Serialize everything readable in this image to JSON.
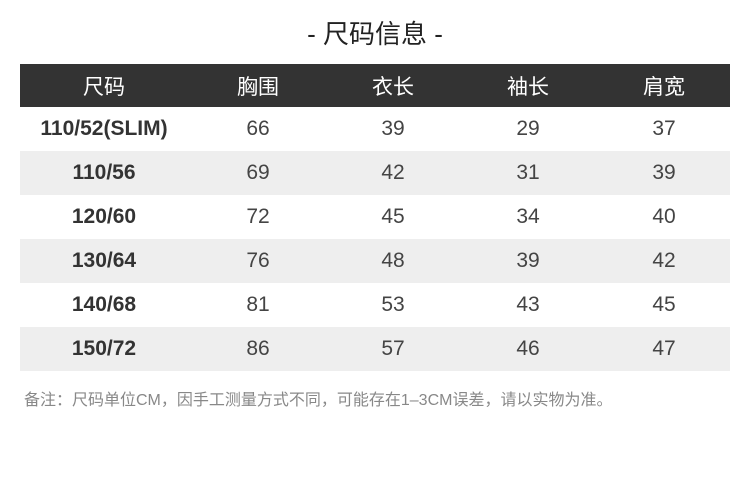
{
  "title": "- 尺码信息 -",
  "table": {
    "headers": [
      "尺码",
      "胸围",
      "衣长",
      "袖长",
      "肩宽"
    ],
    "rows": [
      [
        "110/52(SLIM)",
        "66",
        "39",
        "29",
        "37"
      ],
      [
        "110/56",
        "69",
        "42",
        "31",
        "39"
      ],
      [
        "120/60",
        "72",
        "45",
        "34",
        "40"
      ],
      [
        "130/64",
        "76",
        "48",
        "39",
        "42"
      ],
      [
        "140/68",
        "81",
        "53",
        "43",
        "45"
      ],
      [
        "150/72",
        "86",
        "57",
        "46",
        "47"
      ]
    ]
  },
  "note": "备注：尺码单位CM，因手工测量方式不同，可能存在1–3CM误差，请以实物为准。",
  "colors": {
    "header_bg": "#333333",
    "alt_row_bg": "#eeeeee"
  }
}
